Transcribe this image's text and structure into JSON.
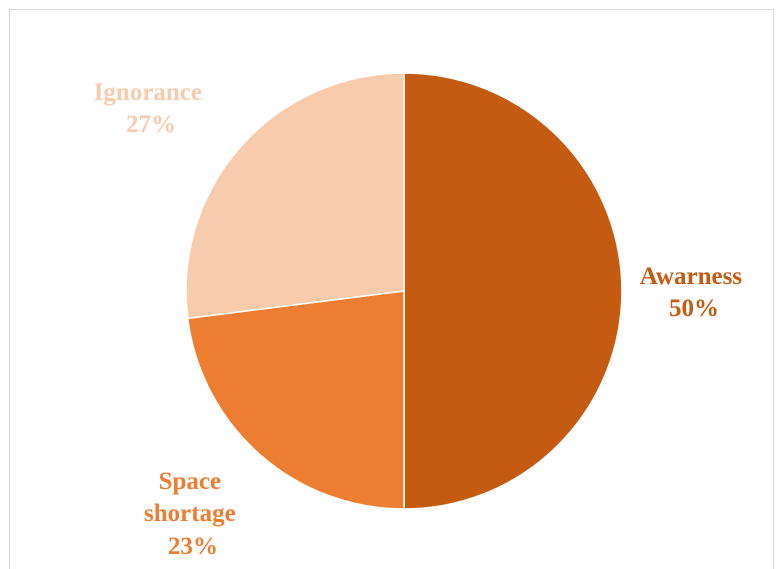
{
  "chart_data": {
    "type": "pie",
    "title": "",
    "start_angle_deg": 0,
    "direction": "clockwise",
    "slices": [
      {
        "label": "Awarness",
        "percent_label": "50%",
        "value": 50,
        "color": "#C55A11"
      },
      {
        "label": "Space shortage",
        "label_lines": [
          "Space",
          "shortage"
        ],
        "percent_label": "23%",
        "value": 23,
        "color": "#ED7D31"
      },
      {
        "label": "Ignorance",
        "percent_label": "27%",
        "value": 27,
        "color": "#F8CBAD"
      }
    ],
    "legend": "none"
  }
}
